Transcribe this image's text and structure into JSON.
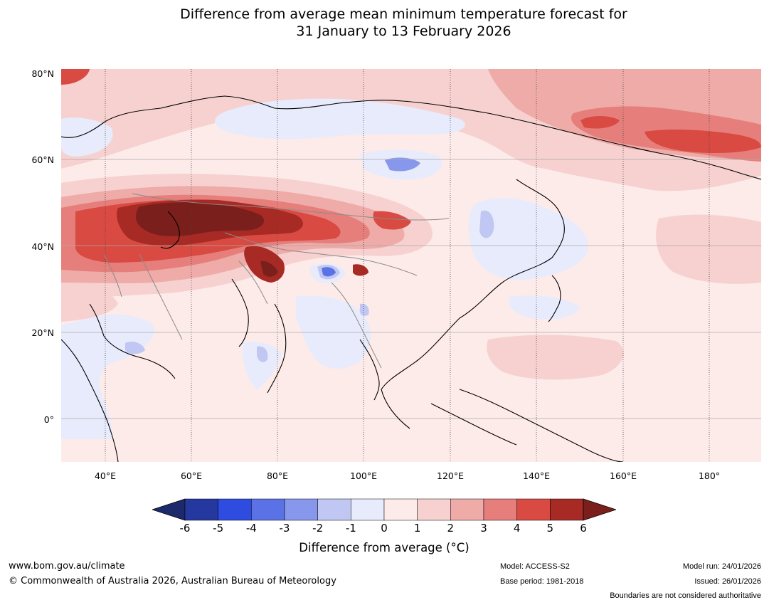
{
  "title_line1": "Difference from average mean minimum temperature forecast for",
  "title_line2": "31 January to 13 February 2026",
  "lat_labels": [
    "80°N",
    "60°N",
    "40°N",
    "20°N",
    "0°"
  ],
  "lon_labels": [
    "40°E",
    "60°E",
    "80°E",
    "100°E",
    "120°E",
    "140°E",
    "160°E",
    "180°"
  ],
  "colorbar": {
    "ticks": [
      "-6",
      "-5",
      "-4",
      "-3",
      "-2",
      "-1",
      "0",
      "1",
      "2",
      "3",
      "4",
      "5",
      "6"
    ],
    "colors": [
      "#25389f",
      "#2e4de0",
      "#5a72e6",
      "#8797eb",
      "#bfc7f2",
      "#e8ebfb",
      "#fdebea",
      "#f6d1d0",
      "#eeaba8",
      "#e67f7b",
      "#d84a42",
      "#a82a24",
      "#7a1f1b",
      "#1c2a6b"
    ],
    "title": "Difference from average (°C)"
  },
  "footer": {
    "website": "www.bom.gov.au/climate",
    "copyright": "© Commonwealth of Australia 2026, Australian Bureau of Meteorology",
    "model": "Model: ACCESS-S2",
    "base_period": "Base period: 1981-2018",
    "model_run": "Model run: 24/01/2026",
    "issued": "Issued: 26/01/2026",
    "disclaimer": "Boundaries are not considered authoritative"
  }
}
